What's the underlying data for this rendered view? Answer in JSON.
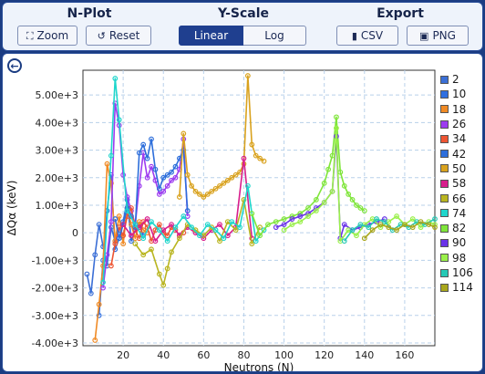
{
  "toolbar": {
    "nplot_title": "N-Plot",
    "yscale_title": "Y-Scale",
    "export_title": "Export",
    "zoom_label": "Zoom",
    "reset_label": "Reset",
    "linear_label": "Linear",
    "log_label": "Log",
    "csv_label": "CSV",
    "png_label": "PNG",
    "active_scale": "Linear"
  },
  "colors": {
    "accent": "#1f3f8f",
    "frame": "#1b3c82"
  },
  "chart_data": {
    "type": "line",
    "xlabel": "Neutrons (N)",
    "ylabel": "ΔQα (keV)",
    "xlim": [
      0,
      175
    ],
    "ylim": [
      -4100,
      5900
    ],
    "xticks": [
      20,
      40,
      60,
      80,
      100,
      120,
      140,
      160
    ],
    "yticks": [
      -4000,
      -3000,
      -2000,
      -1000,
      0,
      1000,
      2000,
      3000,
      4000,
      5000
    ],
    "ytick_labels": [
      "-4.00e+3",
      "-3.00e+3",
      "-2.00e+3",
      "-1.00e+3",
      "0",
      "1.00e+3",
      "2.00e+3",
      "3.00e+3",
      "4.00e+3",
      "5.00e+3"
    ],
    "grid": true,
    "legend_position": "right",
    "series": [
      {
        "name": "2",
        "color": "#3b6fd6",
        "x": [
          2,
          4,
          6,
          8,
          10,
          12,
          14,
          16,
          18
        ],
        "y": [
          -1500,
          -2200,
          -800,
          300,
          -500,
          -1200,
          200,
          -300,
          100
        ]
      },
      {
        "name": "10",
        "color": "#2f6fe0",
        "x": [
          8,
          10,
          12,
          14,
          16,
          18,
          20,
          22,
          24,
          26,
          28,
          30
        ],
        "y": [
          -3000,
          -1000,
          800,
          2100,
          -600,
          -200,
          400,
          1200,
          -300,
          100,
          300,
          -100
        ]
      },
      {
        "name": "18",
        "color": "#f08a24",
        "x": [
          6,
          8,
          10,
          12,
          14,
          16,
          18,
          20,
          22,
          24,
          26,
          28,
          30,
          32
        ],
        "y": [
          -3900,
          -2600,
          -1200,
          2500,
          1800,
          -300,
          600,
          -400,
          900,
          300,
          -200,
          400,
          100,
          0
        ]
      },
      {
        "name": "26",
        "color": "#9d3cf0",
        "x": [
          10,
          12,
          14,
          16,
          18,
          20,
          22,
          24,
          26,
          28,
          30,
          32,
          34,
          36,
          38,
          40,
          42,
          44,
          46,
          48,
          50,
          52
        ],
        "y": [
          -2000,
          -800,
          400,
          4700,
          3900,
          2100,
          1300,
          800,
          300,
          1700,
          2900,
          2000,
          2400,
          1900,
          1400,
          1500,
          1700,
          1900,
          2000,
          2300,
          3400,
          600
        ]
      },
      {
        "name": "34",
        "color": "#ee5533",
        "x": [
          14,
          16,
          18,
          20,
          22,
          24,
          26,
          28,
          30,
          32,
          34,
          36,
          38,
          40,
          42,
          44,
          46,
          48,
          50
        ],
        "y": [
          -1200,
          -400,
          200,
          -100,
          600,
          900,
          100,
          -200,
          400,
          200,
          -300,
          100,
          300,
          0,
          -100,
          200,
          100,
          -100,
          0
        ]
      },
      {
        "name": "42",
        "color": "#2d6edb",
        "x": [
          16,
          18,
          20,
          22,
          24,
          26,
          28,
          30,
          32,
          34,
          36,
          38,
          40,
          42,
          44,
          46,
          48,
          50,
          52
        ],
        "y": [
          500,
          -200,
          300,
          900,
          600,
          200,
          2900,
          3200,
          2700,
          3400,
          2300,
          1600,
          2000,
          2100,
          2200,
          2400,
          2700,
          3000,
          800
        ]
      },
      {
        "name": "50",
        "color": "#d9a21e",
        "x": [
          48,
          50,
          52,
          54,
          56,
          58,
          60,
          62,
          64,
          66,
          68,
          70,
          72,
          74,
          76,
          78,
          80,
          82,
          84,
          86,
          88,
          90
        ],
        "y": [
          1300,
          3600,
          2100,
          1700,
          1500,
          1400,
          1300,
          1400,
          1500,
          1600,
          1700,
          1800,
          1900,
          2000,
          2100,
          2200,
          2500,
          5700,
          3200,
          2800,
          2700,
          2600
        ]
      },
      {
        "name": "58",
        "color": "#d81e8c",
        "x": [
          20,
          24,
          28,
          32,
          36,
          40,
          44,
          48,
          52,
          56,
          60,
          64,
          68,
          72,
          76,
          80,
          84
        ],
        "y": [
          300,
          -100,
          200,
          500,
          -300,
          100,
          300,
          -100,
          200,
          0,
          -200,
          100,
          300,
          -100,
          200,
          2700,
          -200
        ]
      },
      {
        "name": "66",
        "color": "#b9b520",
        "x": [
          26,
          30,
          34,
          38,
          40,
          42,
          44,
          48,
          52,
          56,
          60,
          64,
          68,
          72,
          76,
          80,
          84,
          88
        ],
        "y": [
          -400,
          -800,
          -600,
          -1500,
          -1900,
          -1300,
          -700,
          -200,
          300,
          100,
          -100,
          200,
          -300,
          400,
          100,
          1200,
          -400,
          200
        ]
      },
      {
        "name": "74",
        "color": "#1fd6cc",
        "x": [
          10,
          14,
          16,
          18,
          22,
          26,
          30,
          34,
          38,
          42,
          46,
          50,
          54,
          58,
          62,
          66,
          70,
          74,
          78,
          82,
          86,
          90
        ],
        "y": [
          -1800,
          2800,
          5600,
          4100,
          800,
          300,
          -200,
          400,
          100,
          -300,
          200,
          600,
          200,
          -100,
          300,
          100,
          -200,
          400,
          200,
          1700,
          -300,
          100
        ]
      },
      {
        "name": "82",
        "color": "#7fe53a",
        "x": [
          84,
          88,
          92,
          96,
          100,
          104,
          108,
          112,
          116,
          120,
          122,
          124,
          126,
          128,
          130,
          132,
          134,
          136,
          138,
          140
        ],
        "y": [
          700,
          -100,
          300,
          400,
          500,
          600,
          700,
          900,
          1200,
          1800,
          2300,
          2800,
          4200,
          2200,
          1700,
          1400,
          1200,
          1000,
          900,
          800
        ]
      },
      {
        "name": "90",
        "color": "#6a33e8",
        "x": [
          96,
          100,
          104,
          108,
          112,
          116,
          120,
          124,
          126,
          128,
          130,
          134,
          138,
          142,
          146,
          150
        ],
        "y": [
          200,
          300,
          500,
          600,
          700,
          900,
          1100,
          1500,
          3500,
          -200,
          300,
          100,
          200,
          300,
          400,
          500
        ]
      },
      {
        "name": "98",
        "color": "#9af04a",
        "x": [
          100,
          104,
          108,
          112,
          116,
          120,
          124,
          126,
          128,
          132,
          136,
          140,
          144,
          148,
          152,
          156,
          160,
          164,
          168,
          172,
          175
        ],
        "y": [
          100,
          300,
          400,
          600,
          800,
          1100,
          1500,
          3800,
          -300,
          100,
          -100,
          300,
          500,
          200,
          400,
          600,
          300,
          500,
          200,
          400,
          300
        ]
      },
      {
        "name": "106",
        "color": "#26c9b5",
        "x": [
          130,
          134,
          138,
          142,
          146,
          150,
          154,
          158,
          162,
          166,
          170,
          175
        ],
        "y": [
          -300,
          100,
          300,
          200,
          500,
          400,
          100,
          300,
          200,
          400,
          300,
          500
        ]
      },
      {
        "name": "114",
        "color": "#a8a61c",
        "x": [
          140,
          144,
          148,
          152,
          156,
          160,
          164,
          168,
          172,
          175
        ],
        "y": [
          -200,
          100,
          300,
          200,
          100,
          300,
          200,
          400,
          300,
          200
        ]
      }
    ]
  }
}
